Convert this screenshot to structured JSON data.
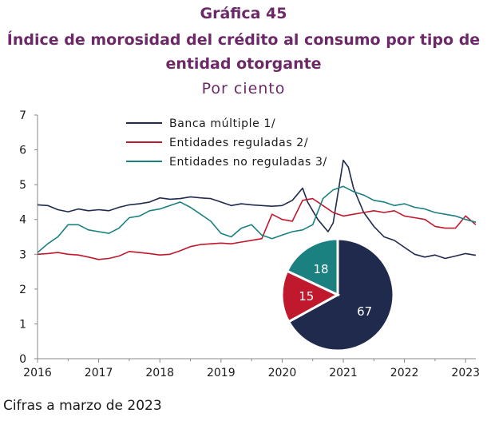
{
  "header": {
    "title_line1": "Gráfica 45",
    "title_line2": "Índice de morosidad del crédito al consumo por tipo de",
    "title_line3": "entidad otorgante",
    "subtitle": "Por ciento"
  },
  "footer": {
    "note": "Cifras a marzo de 2023"
  },
  "colors": {
    "title": "#6b2a67",
    "banca": "#1f2a4d",
    "reguladas": "#c0182c",
    "no_reguladas": "#1a8080"
  },
  "chart_data": [
    {
      "type": "line",
      "x_label_ticks": [
        "2016",
        "2017",
        "2018",
        "2019",
        "2020",
        "2021",
        "2022",
        "2023"
      ],
      "xlim": [
        "2016-01",
        "2023-03"
      ],
      "ylim": [
        0,
        7
      ],
      "y_ticks": [
        "0",
        "1",
        "2",
        "3",
        "4",
        "5",
        "6",
        "7"
      ],
      "legend_placement": "top-center",
      "grid": false,
      "series": [
        {
          "name": "Banca múltiple 1/",
          "color": "#1f2a4d",
          "points": [
            [
              "2016-01",
              4.42
            ],
            [
              "2016-03",
              4.4
            ],
            [
              "2016-05",
              4.28
            ],
            [
              "2016-07",
              4.22
            ],
            [
              "2016-09",
              4.3
            ],
            [
              "2016-11",
              4.25
            ],
            [
              "2017-01",
              4.28
            ],
            [
              "2017-03",
              4.25
            ],
            [
              "2017-05",
              4.35
            ],
            [
              "2017-07",
              4.42
            ],
            [
              "2017-09",
              4.45
            ],
            [
              "2017-11",
              4.5
            ],
            [
              "2018-01",
              4.62
            ],
            [
              "2018-03",
              4.58
            ],
            [
              "2018-05",
              4.6
            ],
            [
              "2018-07",
              4.65
            ],
            [
              "2018-09",
              4.62
            ],
            [
              "2018-11",
              4.6
            ],
            [
              "2019-01",
              4.5
            ],
            [
              "2019-03",
              4.4
            ],
            [
              "2019-05",
              4.45
            ],
            [
              "2019-07",
              4.42
            ],
            [
              "2019-09",
              4.4
            ],
            [
              "2019-11",
              4.38
            ],
            [
              "2020-01",
              4.4
            ],
            [
              "2020-03",
              4.55
            ],
            [
              "2020-05",
              4.9
            ],
            [
              "2020-06",
              4.5
            ],
            [
              "2020-08",
              4.0
            ],
            [
              "2020-10",
              3.65
            ],
            [
              "2020-11",
              3.9
            ],
            [
              "2021-01",
              5.7
            ],
            [
              "2021-02",
              5.5
            ],
            [
              "2021-03",
              4.9
            ],
            [
              "2021-05",
              4.2
            ],
            [
              "2021-07",
              3.8
            ],
            [
              "2021-09",
              3.5
            ],
            [
              "2021-11",
              3.4
            ],
            [
              "2022-01",
              3.2
            ],
            [
              "2022-03",
              3.0
            ],
            [
              "2022-05",
              2.92
            ],
            [
              "2022-07",
              2.98
            ],
            [
              "2022-09",
              2.88
            ],
            [
              "2022-11",
              2.95
            ],
            [
              "2023-01",
              3.02
            ],
            [
              "2023-03",
              2.97
            ]
          ]
        },
        {
          "name": "Entidades reguladas 2/",
          "color": "#c0182c",
          "points": [
            [
              "2016-01",
              3.0
            ],
            [
              "2016-03",
              3.02
            ],
            [
              "2016-05",
              3.05
            ],
            [
              "2016-07",
              3.0
            ],
            [
              "2016-09",
              2.98
            ],
            [
              "2016-11",
              2.92
            ],
            [
              "2017-01",
              2.85
            ],
            [
              "2017-03",
              2.88
            ],
            [
              "2017-05",
              2.95
            ],
            [
              "2017-07",
              3.08
            ],
            [
              "2017-09",
              3.05
            ],
            [
              "2017-11",
              3.02
            ],
            [
              "2018-01",
              2.98
            ],
            [
              "2018-03",
              3.0
            ],
            [
              "2018-05",
              3.1
            ],
            [
              "2018-07",
              3.22
            ],
            [
              "2018-09",
              3.28
            ],
            [
              "2018-11",
              3.3
            ],
            [
              "2019-01",
              3.32
            ],
            [
              "2019-03",
              3.3
            ],
            [
              "2019-05",
              3.35
            ],
            [
              "2019-07",
              3.4
            ],
            [
              "2019-09",
              3.45
            ],
            [
              "2019-11",
              4.15
            ],
            [
              "2020-01",
              4.0
            ],
            [
              "2020-03",
              3.95
            ],
            [
              "2020-05",
              4.55
            ],
            [
              "2020-07",
              4.6
            ],
            [
              "2020-09",
              4.4
            ],
            [
              "2020-11",
              4.2
            ],
            [
              "2021-01",
              4.1
            ],
            [
              "2021-03",
              4.15
            ],
            [
              "2021-05",
              4.2
            ],
            [
              "2021-07",
              4.25
            ],
            [
              "2021-09",
              4.2
            ],
            [
              "2021-11",
              4.25
            ],
            [
              "2022-01",
              4.1
            ],
            [
              "2022-03",
              4.05
            ],
            [
              "2022-05",
              4.0
            ],
            [
              "2022-07",
              3.8
            ],
            [
              "2022-09",
              3.75
            ],
            [
              "2022-11",
              3.75
            ],
            [
              "2023-01",
              4.1
            ],
            [
              "2023-03",
              3.85
            ]
          ]
        },
        {
          "name": "Entidades no reguladas 3/",
          "color": "#1a8080",
          "points": [
            [
              "2016-01",
              3.05
            ],
            [
              "2016-03",
              3.3
            ],
            [
              "2016-05",
              3.5
            ],
            [
              "2016-07",
              3.85
            ],
            [
              "2016-09",
              3.85
            ],
            [
              "2016-11",
              3.7
            ],
            [
              "2017-01",
              3.65
            ],
            [
              "2017-03",
              3.6
            ],
            [
              "2017-05",
              3.75
            ],
            [
              "2017-07",
              4.05
            ],
            [
              "2017-09",
              4.1
            ],
            [
              "2017-11",
              4.25
            ],
            [
              "2018-01",
              4.3
            ],
            [
              "2018-03",
              4.4
            ],
            [
              "2018-05",
              4.5
            ],
            [
              "2018-07",
              4.35
            ],
            [
              "2018-09",
              4.15
            ],
            [
              "2018-11",
              3.95
            ],
            [
              "2019-01",
              3.6
            ],
            [
              "2019-03",
              3.5
            ],
            [
              "2019-05",
              3.75
            ],
            [
              "2019-07",
              3.85
            ],
            [
              "2019-09",
              3.55
            ],
            [
              "2019-11",
              3.45
            ],
            [
              "2020-01",
              3.55
            ],
            [
              "2020-03",
              3.65
            ],
            [
              "2020-05",
              3.7
            ],
            [
              "2020-07",
              3.85
            ],
            [
              "2020-09",
              4.6
            ],
            [
              "2020-11",
              4.85
            ],
            [
              "2021-01",
              4.95
            ],
            [
              "2021-03",
              4.8
            ],
            [
              "2021-05",
              4.7
            ],
            [
              "2021-07",
              4.55
            ],
            [
              "2021-09",
              4.5
            ],
            [
              "2021-11",
              4.4
            ],
            [
              "2022-01",
              4.45
            ],
            [
              "2022-03",
              4.35
            ],
            [
              "2022-05",
              4.3
            ],
            [
              "2022-07",
              4.2
            ],
            [
              "2022-09",
              4.15
            ],
            [
              "2022-11",
              4.1
            ],
            [
              "2023-01",
              4.0
            ],
            [
              "2023-03",
              3.92
            ]
          ]
        }
      ]
    },
    {
      "type": "pie",
      "slices": [
        {
          "label": "67",
          "value": 67,
          "color": "#1f2a4d"
        },
        {
          "label": "15",
          "value": 15,
          "color": "#c0182c"
        },
        {
          "label": "18",
          "value": 18,
          "color": "#1a8080"
        }
      ]
    }
  ]
}
